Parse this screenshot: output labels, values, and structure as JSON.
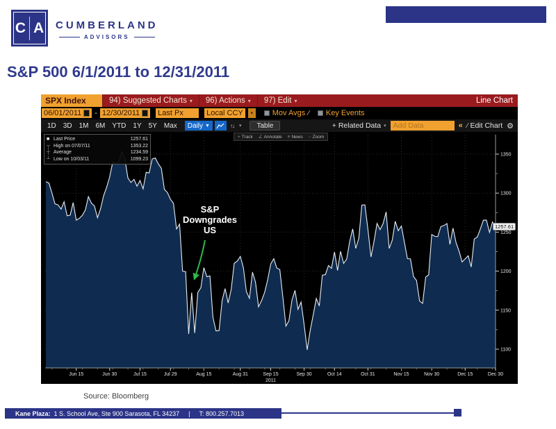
{
  "colors": {
    "brand_navy": "#2b3487",
    "title_navy": "#303a8c",
    "bloomberg_red": "#9a1b1e",
    "amber": "#f0a12f",
    "highlight_blue": "#1568c8",
    "annotation_green": "#2db84b"
  },
  "header": {
    "logo_letters": [
      "C",
      "A"
    ],
    "brand_line1": "CUMBERLAND",
    "brand_line2": "ADVISORS",
    "title": "S&P 500 6/1/2011 to 12/31/2011"
  },
  "terminal": {
    "title_bar": {
      "ticker": "SPX Index",
      "menus": [
        "94) Suggested Charts",
        "96) Actions",
        "97) Edit"
      ],
      "right_label": "Line Chart"
    },
    "settings_bar": {
      "date_from": "06/01/2011",
      "date_separator": "-",
      "date_to": "12/30/2011",
      "field": "Last Px",
      "currency": "Local CCY",
      "mov_avgs_label": "Mov Avgs",
      "key_events_label": "Key Events"
    },
    "toolbar": {
      "ranges": [
        "1D",
        "3D",
        "1M",
        "6M",
        "YTD",
        "1Y",
        "5Y",
        "Max"
      ],
      "period": "Daily",
      "table_label": "Table",
      "related_data_label": "+ Related Data",
      "add_data_placeholder": "Add Data",
      "collapse_label": "«",
      "edit_chart_label": "Edit Chart"
    },
    "chart_tools": [
      "Track",
      "Annotate",
      "News",
      "Zoom"
    ],
    "legend": [
      {
        "marker": "square",
        "label": "Last Price",
        "value": "1257.61"
      },
      {
        "marker": "high",
        "label": "High on 07/07/11",
        "value": "1353.22"
      },
      {
        "marker": "avg",
        "label": "Average",
        "value": "1234.59"
      },
      {
        "marker": "low",
        "label": "Low on 10/03/11",
        "value": "1099.23"
      }
    ],
    "annotation": {
      "lines": [
        "S&P",
        "Downgrades",
        "US"
      ]
    },
    "last_price_badge": "1257.61"
  },
  "chart_data": {
    "type": "area",
    "title": "SPX Index (S&P 500) 06/01/2011 - 12/30/2011, Daily Last Px",
    "ylim": [
      1076,
      1374
    ],
    "y_ticks": [
      1350,
      1300,
      1250,
      1200,
      1150,
      1100
    ],
    "x_ticks": [
      {
        "label": "Jun 15",
        "date": "06/15"
      },
      {
        "label": "Jun 30",
        "date": "06/30"
      },
      {
        "label": "Jul 15",
        "date": "07/15"
      },
      {
        "label": "Jul 29",
        "date": "07/29"
      },
      {
        "label": "Aug 15",
        "date": "08/15"
      },
      {
        "label": "Aug 31",
        "date": "08/31"
      },
      {
        "label": "Sep 15",
        "date": "09/15",
        "year": "2011"
      },
      {
        "label": "Sep 30",
        "date": "09/30"
      },
      {
        "label": "Oct 14",
        "date": "10/14"
      },
      {
        "label": "Oct 31",
        "date": "10/31"
      },
      {
        "label": "Nov 15",
        "date": "11/15"
      },
      {
        "label": "Nov 30",
        "date": "11/30"
      },
      {
        "label": "Dec 15",
        "date": "12/15"
      },
      {
        "label": "Dec 30",
        "date": "12/30"
      }
    ],
    "dates": [
      "06/01",
      "06/02",
      "06/03",
      "06/06",
      "06/07",
      "06/08",
      "06/09",
      "06/10",
      "06/13",
      "06/14",
      "06/15",
      "06/16",
      "06/17",
      "06/20",
      "06/21",
      "06/22",
      "06/23",
      "06/24",
      "06/27",
      "06/28",
      "06/29",
      "06/30",
      "07/01",
      "07/05",
      "07/06",
      "07/07",
      "07/08",
      "07/11",
      "07/12",
      "07/13",
      "07/14",
      "07/15",
      "07/18",
      "07/19",
      "07/20",
      "07/21",
      "07/22",
      "07/25",
      "07/26",
      "07/27",
      "07/28",
      "07/29",
      "08/01",
      "08/02",
      "08/03",
      "08/04",
      "08/05",
      "08/08",
      "08/09",
      "08/10",
      "08/11",
      "08/12",
      "08/15",
      "08/16",
      "08/17",
      "08/18",
      "08/19",
      "08/22",
      "08/23",
      "08/24",
      "08/25",
      "08/26",
      "08/29",
      "08/30",
      "08/31",
      "09/01",
      "09/02",
      "09/06",
      "09/07",
      "09/08",
      "09/09",
      "09/12",
      "09/13",
      "09/14",
      "09/15",
      "09/16",
      "09/19",
      "09/20",
      "09/21",
      "09/22",
      "09/23",
      "09/26",
      "09/27",
      "09/28",
      "09/29",
      "09/30",
      "10/03",
      "10/04",
      "10/05",
      "10/06",
      "10/07",
      "10/10",
      "10/11",
      "10/12",
      "10/13",
      "10/14",
      "10/17",
      "10/18",
      "10/19",
      "10/20",
      "10/21",
      "10/24",
      "10/25",
      "10/26",
      "10/27",
      "10/28",
      "10/31",
      "11/01",
      "11/02",
      "11/03",
      "11/04",
      "11/07",
      "11/08",
      "11/09",
      "11/10",
      "11/11",
      "11/14",
      "11/15",
      "11/16",
      "11/17",
      "11/18",
      "11/21",
      "11/22",
      "11/23",
      "11/25",
      "11/28",
      "11/29",
      "11/30",
      "12/01",
      "12/02",
      "12/05",
      "12/06",
      "12/07",
      "12/08",
      "12/09",
      "12/12",
      "12/13",
      "12/14",
      "12/15",
      "12/16",
      "12/19",
      "12/20",
      "12/21",
      "12/22",
      "12/23",
      "12/27",
      "12/28",
      "12/29",
      "12/30"
    ],
    "values": [
      1314.55,
      1312.94,
      1300.16,
      1286.17,
      1284.94,
      1279.56,
      1289.0,
      1270.98,
      1271.83,
      1287.87,
      1265.42,
      1267.64,
      1271.5,
      1278.36,
      1295.52,
      1287.14,
      1283.5,
      1268.45,
      1280.1,
      1296.67,
      1307.41,
      1320.64,
      1339.67,
      1337.88,
      1339.22,
      1353.22,
      1343.8,
      1319.49,
      1313.64,
      1317.72,
      1308.87,
      1316.14,
      1305.44,
      1326.73,
      1325.84,
      1343.8,
      1345.02,
      1337.43,
      1331.94,
      1304.89,
      1300.67,
      1292.28,
      1286.94,
      1254.05,
      1260.34,
      1200.07,
      1199.38,
      1119.46,
      1172.53,
      1120.76,
      1172.64,
      1178.81,
      1204.49,
      1192.76,
      1193.89,
      1140.65,
      1123.53,
      1123.82,
      1162.35,
      1177.6,
      1159.27,
      1176.8,
      1210.08,
      1212.92,
      1218.89,
      1204.42,
      1173.97,
      1165.24,
      1198.62,
      1185.9,
      1154.23,
      1162.27,
      1172.87,
      1188.68,
      1209.11,
      1216.01,
      1204.09,
      1202.09,
      1166.76,
      1129.56,
      1136.43,
      1162.95,
      1175.38,
      1151.06,
      1160.4,
      1131.42,
      1099.23,
      1123.95,
      1144.03,
      1164.97,
      1155.46,
      1194.89,
      1195.54,
      1207.25,
      1203.66,
      1224.58,
      1200.86,
      1225.38,
      1209.88,
      1215.39,
      1238.25,
      1254.19,
      1229.05,
      1242.0,
      1284.59,
      1285.09,
      1253.3,
      1218.28,
      1237.9,
      1261.15,
      1253.23,
      1261.12,
      1275.92,
      1229.1,
      1239.7,
      1263.85,
      1251.78,
      1257.81,
      1236.91,
      1216.13,
      1215.65,
      1192.98,
      1188.04,
      1161.79,
      1158.67,
      1192.55,
      1195.19,
      1246.96,
      1244.58,
      1244.28,
      1257.08,
      1258.47,
      1261.01,
      1234.35,
      1255.19,
      1236.47,
      1225.73,
      1211.82,
      1215.75,
      1219.66,
      1205.35,
      1241.3,
      1243.72,
      1254.0,
      1265.33,
      1265.43,
      1249.64,
      1263.02,
      1257.61
    ],
    "last_price": 1257.61,
    "high": {
      "date": "07/07/11",
      "value": 1353.22
    },
    "average": 1234.59,
    "low": {
      "date": "10/03/11",
      "value": 1099.23
    },
    "grid": true,
    "legend_position": "top-left",
    "colors": {
      "background": "#000000",
      "area_fill": "#0f2c50",
      "line": "#e8edf2",
      "grid": "#2e2e2e",
      "annotation_green": "#2db84b"
    }
  },
  "footer": {
    "source": "Source: Bloomberg",
    "address_label": "Kane Plaza:",
    "address": "1 S. School Ave, Ste 900  Sarasota, FL 34237",
    "separator": "|",
    "phone": "T: 800.257.7013"
  }
}
